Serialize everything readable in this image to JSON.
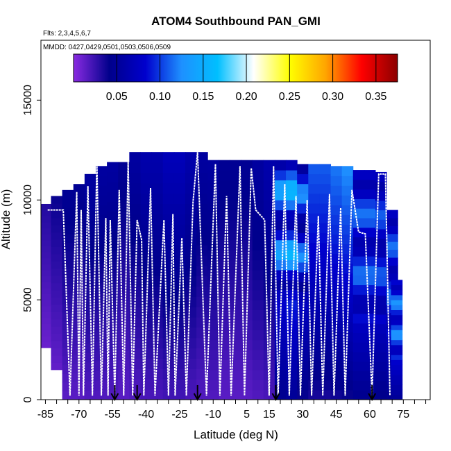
{
  "chart_data": {
    "type": "heatmap",
    "title": "ATOM4 Southbound PAN_GMI",
    "flights_label": "Flts: 2,3,4,5,6,7",
    "dates_label": "MMDD: 0427,0429,0501,0503,0506,0509",
    "xlabel": "Latitude (deg N)",
    "ylabel": "Altitude (m)",
    "xlim": [
      -87,
      87
    ],
    "ylim": [
      0,
      18000
    ],
    "x_ticks": [
      -85,
      -70,
      -55,
      -40,
      -25,
      -10,
      5,
      15,
      30,
      45,
      60,
      75
    ],
    "x_tick_labels": [
      "-85",
      "-70",
      "-55",
      "-40",
      "-25",
      "-10",
      "5",
      "15",
      "30",
      "45",
      "60",
      "75"
    ],
    "y_ticks": [
      0,
      5000,
      10000,
      15000
    ],
    "y_tick_labels": [
      "0",
      "5000",
      "10000",
      "15000"
    ],
    "colorbar": {
      "range": [
        0.0,
        0.375
      ],
      "ticks": [
        0.05,
        0.1,
        0.15,
        0.2,
        0.25,
        0.3,
        0.35
      ],
      "tick_labels": [
        "0.05",
        "0.10",
        "0.15",
        "0.20",
        "0.25",
        "0.30",
        "0.35"
      ],
      "colors": [
        "#8a2be2",
        "#00008b",
        "#0000cd",
        "#1e90ff",
        "#00bfff",
        "#ffffff",
        "#ffff00",
        "#ffa500",
        "#ff0000",
        "#8b0000"
      ]
    },
    "profile_columns": [
      {
        "lat": -85,
        "top": 9800,
        "value": 0.02
      },
      {
        "lat": -80,
        "top": 10200,
        "value": 0.025
      },
      {
        "lat": -75,
        "top": 10500,
        "value": 0.03
      },
      {
        "lat": -70,
        "top": 10800,
        "value": 0.03
      },
      {
        "lat": -65,
        "top": 11300,
        "value": 0.035
      },
      {
        "lat": -60,
        "top": 11700,
        "value": 0.035
      },
      {
        "lat": -55,
        "top": 11900,
        "value": 0.035
      },
      {
        "lat": -50,
        "top": 11900,
        "value": 0.03
      },
      {
        "lat": -45,
        "top": 12400,
        "value": 0.035
      },
      {
        "lat": -40,
        "top": 12400,
        "value": 0.04
      },
      {
        "lat": -35,
        "top": 12400,
        "value": 0.04
      },
      {
        "lat": -30,
        "top": 12400,
        "value": 0.045
      },
      {
        "lat": -25,
        "top": 12400,
        "value": 0.045
      },
      {
        "lat": -20,
        "top": 12400,
        "value": 0.04
      },
      {
        "lat": -15,
        "top": 12400,
        "value": 0.035
      },
      {
        "lat": -10,
        "top": 12000,
        "value": 0.035
      },
      {
        "lat": -5,
        "top": 12000,
        "value": 0.03
      },
      {
        "lat": 0,
        "top": 12000,
        "value": 0.03
      },
      {
        "lat": 5,
        "top": 12000,
        "value": 0.03
      },
      {
        "lat": 10,
        "top": 12000,
        "value": 0.035
      },
      {
        "lat": 15,
        "top": 12000,
        "value": 0.04
      },
      {
        "lat": 20,
        "top": 12000,
        "value": 0.09
      },
      {
        "lat": 25,
        "top": 12000,
        "value": 0.1
      },
      {
        "lat": 30,
        "top": 11800,
        "value": 0.08
      },
      {
        "lat": 35,
        "top": 11800,
        "value": 0.07
      },
      {
        "lat": 40,
        "top": 11800,
        "value": 0.07
      },
      {
        "lat": 45,
        "top": 11700,
        "value": 0.075
      },
      {
        "lat": 50,
        "top": 11700,
        "value": 0.08
      },
      {
        "lat": 55,
        "top": 11500,
        "value": 0.09
      },
      {
        "lat": 60,
        "top": 11500,
        "value": 0.09
      },
      {
        "lat": 65,
        "top": 11400,
        "value": 0.085
      },
      {
        "lat": 70,
        "top": 9500,
        "value": 0.09
      },
      {
        "lat": 72,
        "top": 6000,
        "value": 0.1
      }
    ],
    "profile_bottoms": [
      {
        "lat": -87,
        "bottom": 3000
      },
      {
        "lat": -82,
        "bottom": 2000
      },
      {
        "lat": -78,
        "bottom": 1000
      },
      {
        "lat": -75,
        "bottom": 0
      },
      {
        "lat": 72,
        "bottom": 0
      }
    ],
    "flight_track": [
      [
        -84,
        9500
      ],
      [
        -77,
        9500
      ],
      [
        -74,
        200
      ],
      [
        -71,
        10400
      ],
      [
        -70,
        200
      ],
      [
        -69,
        9500
      ],
      [
        -68,
        200
      ],
      [
        -66,
        10700
      ],
      [
        -64,
        200
      ],
      [
        -62,
        11900
      ],
      [
        -60,
        200
      ],
      [
        -58,
        9100
      ],
      [
        -57,
        200
      ],
      [
        -56,
        9000
      ],
      [
        -54,
        200
      ],
      [
        -52,
        10500
      ],
      [
        -50,
        200
      ],
      [
        -48,
        11900
      ],
      [
        -46,
        200
      ],
      [
        -44,
        9000
      ],
      [
        -42,
        8000
      ],
      [
        -41,
        200
      ],
      [
        -38,
        10600
      ],
      [
        -36,
        200
      ],
      [
        -32,
        9000
      ],
      [
        -30,
        200
      ],
      [
        -28,
        9300
      ],
      [
        -27,
        200
      ],
      [
        -24,
        8100
      ],
      [
        -22,
        200
      ],
      [
        -19,
        9900
      ],
      [
        -17,
        12400
      ],
      [
        -13,
        200
      ],
      [
        -9,
        11800
      ],
      [
        -7,
        200
      ],
      [
        -4,
        10200
      ],
      [
        -2,
        200
      ],
      [
        2,
        11700
      ],
      [
        4,
        200
      ],
      [
        7,
        11600
      ],
      [
        9,
        9500
      ],
      [
        13,
        9000
      ],
      [
        15,
        200
      ],
      [
        17,
        11700
      ],
      [
        19,
        200
      ],
      [
        22,
        10800
      ],
      [
        24,
        200
      ],
      [
        27,
        10200
      ],
      [
        29,
        200
      ],
      [
        32,
        10000
      ],
      [
        34,
        200
      ],
      [
        37,
        9200
      ],
      [
        39,
        200
      ],
      [
        42,
        10300
      ],
      [
        44,
        200
      ],
      [
        47,
        9600
      ],
      [
        49,
        200
      ],
      [
        52,
        10500
      ],
      [
        55,
        8400
      ],
      [
        58,
        8300
      ],
      [
        61,
        200
      ],
      [
        64,
        11300
      ],
      [
        67,
        11300
      ],
      [
        69,
        200
      ]
    ],
    "arrows_lat": [
      -54,
      -44,
      -17,
      18,
      61
    ]
  }
}
